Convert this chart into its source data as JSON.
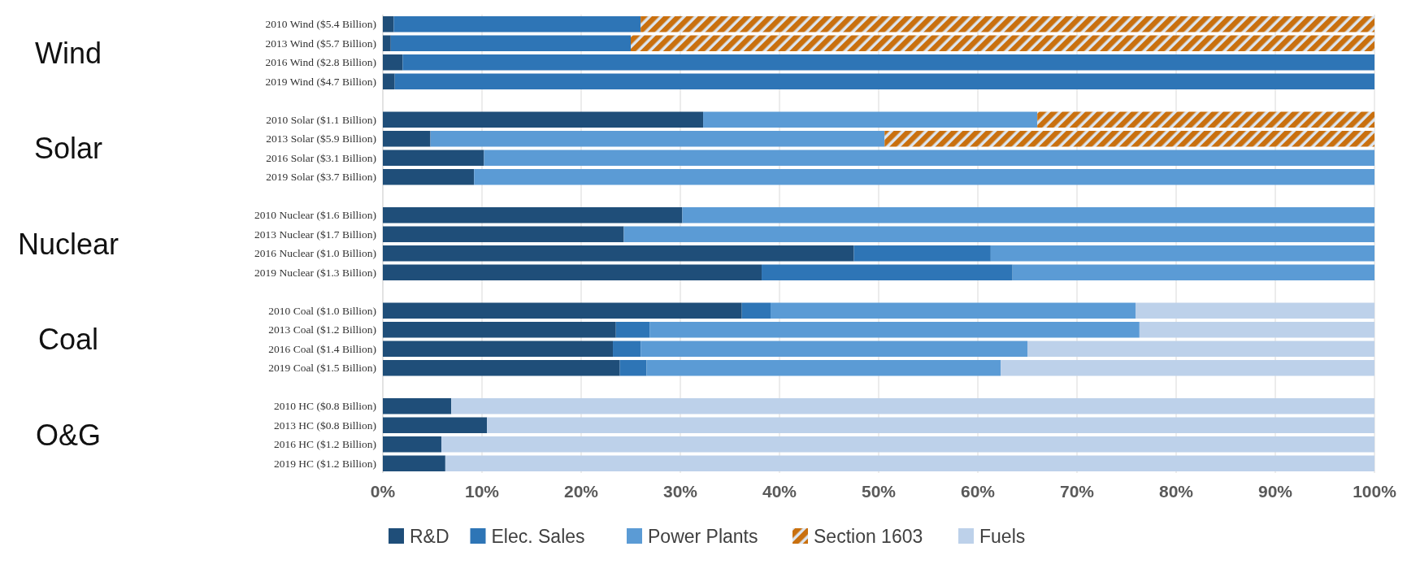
{
  "chart_data": {
    "type": "bar",
    "orientation": "horizontal",
    "stacked": true,
    "categories": [
      "2010 Wind ($5.4 Billion)",
      "2013 Wind ($5.7 Billion)",
      "2016 Wind ($2.8 Billion)",
      "2019 Wind ($4.7 Billion)",
      "2010 Solar ($1.1 Billion)",
      "2013 Solar ($5.9 Billion)",
      "2016 Solar ($3.1 Billion)",
      "2019 Solar ($3.7 Billion)",
      "2010 Nuclear ($1.6 Billion)",
      "2013 Nuclear ($1.7 Billion)",
      "2016 Nuclear ($1.0 Billion)",
      "2019 Nuclear ($1.3 Billion)",
      "2010 Coal ($1.0 Billion)",
      "2013 Coal ($1.2 Billion)",
      "2016 Coal ($1.4 Billion)",
      "2019 Coal ($1.5 Billion)",
      "2010 HC ($0.8 Billion)",
      "2013 HC ($0.8 Billion)",
      "2016 HC ($1.2 Billion)",
      "2019 HC ($1.2 Billion)"
    ],
    "series": [
      {
        "name": "R&D",
        "color": "#1f4e79",
        "values": [
          1.1,
          0.8,
          2.0,
          1.2,
          32.3,
          4.8,
          10.2,
          9.2,
          30.2,
          24.3,
          47.5,
          38.2,
          36.2,
          23.5,
          23.2,
          23.9,
          6.9,
          10.5,
          5.9,
          6.3
        ]
      },
      {
        "name": "Elec. Sales",
        "color": "#2e75b6",
        "values": [
          24.9,
          24.2,
          98.0,
          98.8,
          0,
          0,
          0,
          0,
          0,
          0,
          13.8,
          25.3,
          2.9,
          3.4,
          2.8,
          2.7,
          0,
          0,
          0,
          0
        ]
      },
      {
        "name": "Power Plants",
        "color": "#5b9bd5",
        "values": [
          0,
          0,
          0,
          0,
          33.7,
          45.8,
          89.8,
          90.8,
          69.8,
          75.7,
          38.7,
          36.5,
          36.8,
          49.4,
          39.0,
          35.7,
          0,
          0,
          0,
          0
        ]
      },
      {
        "name": "Section 1603",
        "color": "#c9700f",
        "values": [
          74.0,
          75.0,
          0,
          0,
          34.0,
          49.4,
          0,
          0,
          0,
          0,
          0,
          0,
          0,
          0,
          0,
          0,
          0,
          0,
          0,
          0
        ]
      },
      {
        "name": "Fuels",
        "color": "#bdd1ea",
        "values": [
          0,
          0,
          0,
          0,
          0,
          0,
          0,
          0,
          0,
          0,
          0,
          0,
          24.1,
          23.7,
          35.0,
          37.7,
          93.1,
          89.5,
          94.1,
          93.7
        ]
      }
    ],
    "xlim": [
      0,
      100
    ],
    "xticks": [
      {
        "value": 0,
        "label": "0%"
      },
      {
        "value": 10,
        "label": "10%"
      },
      {
        "value": 20,
        "label": "20%"
      },
      {
        "value": 30,
        "label": "30%"
      },
      {
        "value": 40,
        "label": "40%"
      },
      {
        "value": 50,
        "label": "50%"
      },
      {
        "value": 60,
        "label": "60%"
      },
      {
        "value": 70,
        "label": "70%"
      },
      {
        "value": 80,
        "label": "80%"
      },
      {
        "value": 90,
        "label": "90%"
      },
      {
        "value": 100,
        "label": "100%"
      }
    ],
    "annotations": [
      "Wind",
      "Solar",
      "Nuclear",
      "Coal",
      "O&G"
    ],
    "grid": "x",
    "legend": "bottom"
  }
}
